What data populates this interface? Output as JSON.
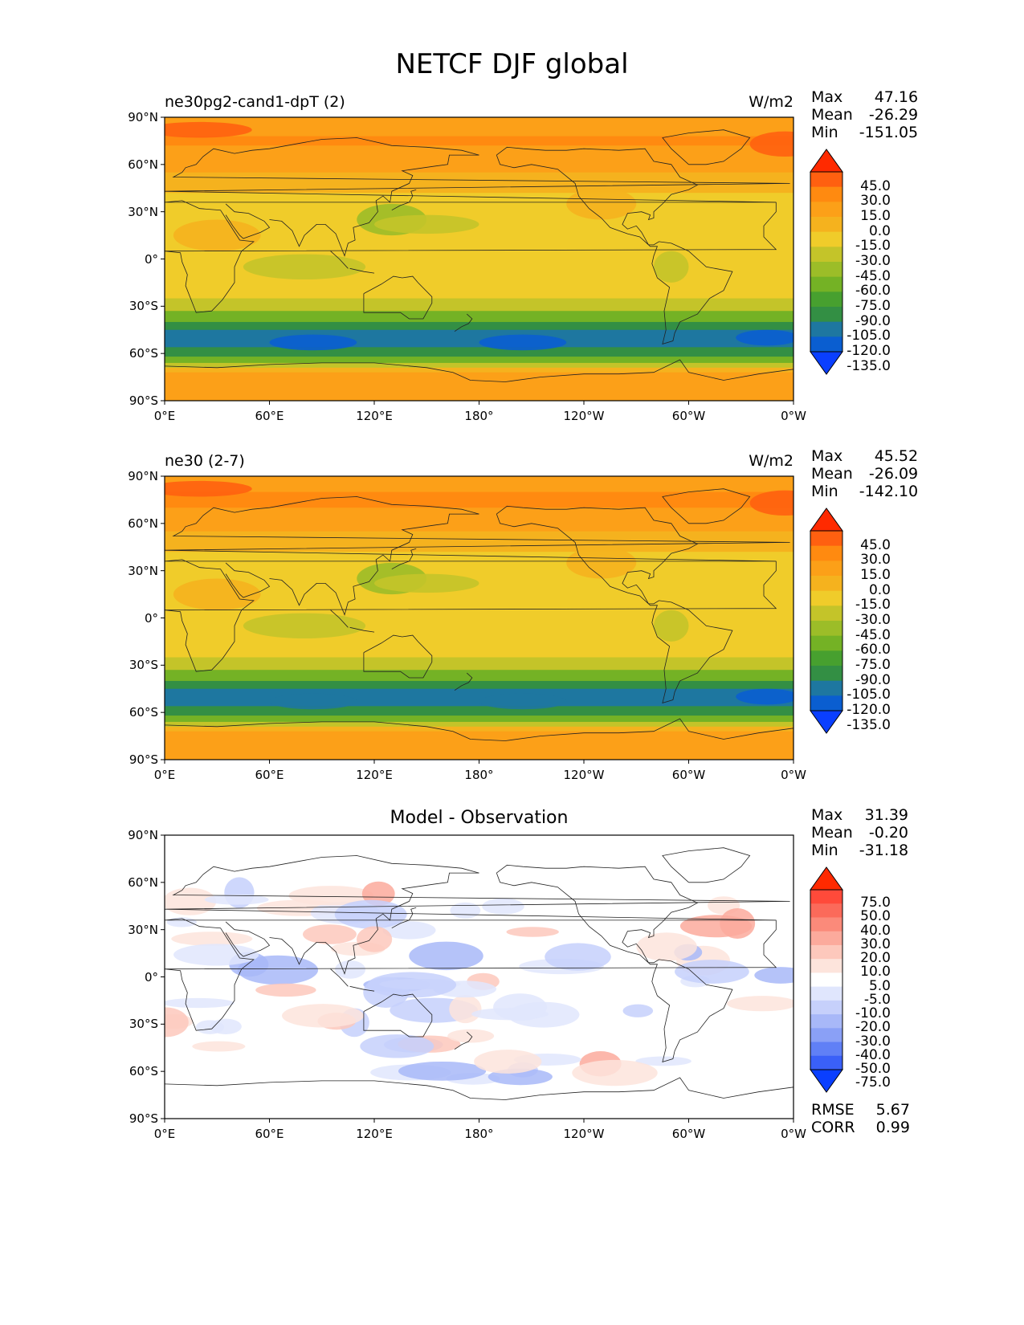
{
  "title": "NETCF DJF global",
  "panels": [
    {
      "title": "ne30pg2-cand1-dpT (2)",
      "units": "W/m2",
      "stats": [
        {
          "label": "Max",
          "value": "47.16"
        },
        {
          "label": "Mean",
          "value": "-26.29"
        },
        {
          "label": "Min",
          "value": "-151.05"
        }
      ],
      "colorbar": {
        "labels": [
          "45.0",
          "30.0",
          "15.0",
          "0.0",
          "-15.0",
          "-30.0",
          "-45.0",
          "-60.0",
          "-75.0",
          "-90.0",
          "-105.0",
          "-120.0",
          "-135.0"
        ],
        "colors": [
          "#ff2a00",
          "#ff6010",
          "#ff8a10",
          "#fca018",
          "#f5b21e",
          "#f0cc2a",
          "#c4c429",
          "#9cbd28",
          "#74b225",
          "#47a02f",
          "#338f44",
          "#1e77a0",
          "#0a5ed0",
          "#0a3fff"
        ]
      },
      "bands": [
        {
          "lat": 90,
          "color": "#fca018"
        },
        {
          "lat": 78,
          "color": "#ff8a10"
        },
        {
          "lat": 72,
          "color": "#fca018"
        },
        {
          "lat": 55,
          "color": "#f5b21e"
        },
        {
          "lat": 42,
          "color": "#f0cc2a"
        },
        {
          "lat": -5,
          "color": "#f0cc2a"
        },
        {
          "lat": -25,
          "color": "#c4c429"
        },
        {
          "lat": -33,
          "color": "#74b225"
        },
        {
          "lat": -40,
          "color": "#338f44"
        },
        {
          "lat": -45,
          "color": "#1e77a0"
        },
        {
          "lat": -56,
          "color": "#338f44"
        },
        {
          "lat": -62,
          "color": "#74b225"
        },
        {
          "lat": -66,
          "color": "#c4c429"
        },
        {
          "lat": -69,
          "color": "#f5b21e"
        },
        {
          "lat": -72,
          "color": "#fca018"
        }
      ]
    },
    {
      "title": "ne30 (2-7)",
      "units": "W/m2",
      "stats": [
        {
          "label": "Max",
          "value": "45.52"
        },
        {
          "label": "Mean",
          "value": "-26.09"
        },
        {
          "label": "Min",
          "value": "-142.10"
        }
      ],
      "colorbar": {
        "labels": [
          "45.0",
          "30.0",
          "15.0",
          "0.0",
          "-15.0",
          "-30.0",
          "-45.0",
          "-60.0",
          "-75.0",
          "-90.0",
          "-105.0",
          "-120.0",
          "-135.0"
        ],
        "colors": [
          "#ff2a00",
          "#ff6010",
          "#ff8a10",
          "#fca018",
          "#f5b21e",
          "#f0cc2a",
          "#c4c429",
          "#9cbd28",
          "#74b225",
          "#47a02f",
          "#338f44",
          "#1e77a0",
          "#0a5ed0",
          "#0a3fff"
        ]
      },
      "bands": [
        {
          "lat": 90,
          "color": "#fca018"
        },
        {
          "lat": 80,
          "color": "#ff8a10"
        },
        {
          "lat": 70,
          "color": "#fca018"
        },
        {
          "lat": 55,
          "color": "#f5b21e"
        },
        {
          "lat": 42,
          "color": "#f0cc2a"
        },
        {
          "lat": -5,
          "color": "#f0cc2a"
        },
        {
          "lat": -25,
          "color": "#c4c429"
        },
        {
          "lat": -33,
          "color": "#74b225"
        },
        {
          "lat": -40,
          "color": "#338f44"
        },
        {
          "lat": -45,
          "color": "#1e77a0"
        },
        {
          "lat": -56,
          "color": "#338f44"
        },
        {
          "lat": -62,
          "color": "#74b225"
        },
        {
          "lat": -66,
          "color": "#c4c429"
        },
        {
          "lat": -69,
          "color": "#f5b21e"
        },
        {
          "lat": -72,
          "color": "#fca018"
        }
      ]
    },
    {
      "title": "Model - Observation",
      "units": "",
      "stats": [
        {
          "label": "Max",
          "value": "31.39"
        },
        {
          "label": "Mean",
          "value": "-0.20"
        },
        {
          "label": "Min",
          "value": "-31.18"
        }
      ],
      "extra_stats": [
        {
          "label": "RMSE",
          "value": "5.67"
        },
        {
          "label": "CORR",
          "value": "0.99"
        }
      ],
      "colorbar": {
        "labels": [
          "75.0",
          "50.0",
          "40.0",
          "30.0",
          "20.0",
          "10.0",
          "5.0",
          "-5.0",
          "-10.0",
          "-20.0",
          "-30.0",
          "-40.0",
          "-50.0",
          "-75.0"
        ],
        "colors": [
          "#ff2a00",
          "#ff4a3a",
          "#fb6a5a",
          "#fb8a7a",
          "#fcaa9c",
          "#fdc8bc",
          "#fde4dc",
          "#ffffff",
          "#e0e6fd",
          "#c6d0fb",
          "#a8b8f8",
          "#8aa0f6",
          "#6080f6",
          "#3a60f8",
          "#0a3fff"
        ]
      },
      "bands": []
    }
  ],
  "axes": {
    "lat_ticks": [
      "90°N",
      "60°N",
      "30°N",
      "0°",
      "30°S",
      "60°S",
      "90°S"
    ],
    "lon_ticks": [
      "0°E",
      "60°E",
      "120°E",
      "180°",
      "120°W",
      "60°W",
      "0°W"
    ]
  }
}
